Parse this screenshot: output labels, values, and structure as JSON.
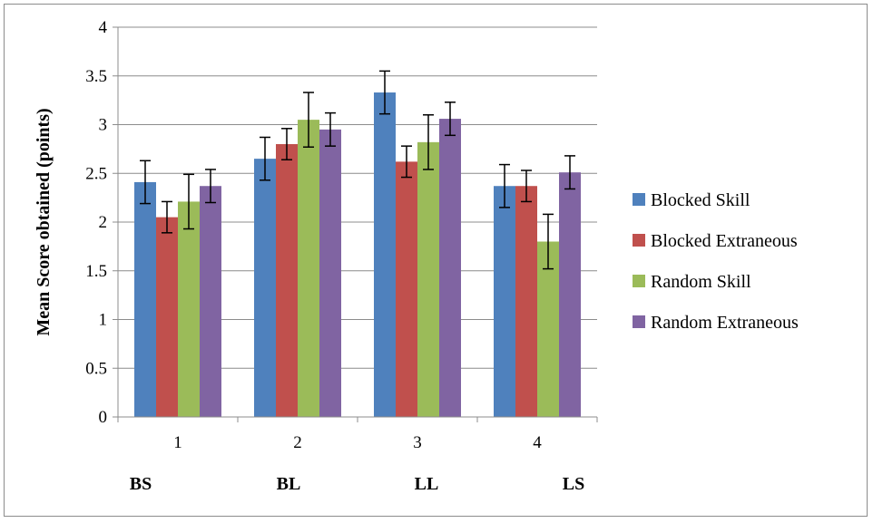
{
  "chart_data": {
    "type": "bar",
    "title": "",
    "xlabel": "",
    "ylabel": "Mean Score obtained (points)",
    "ylim": [
      0,
      4
    ],
    "yticks": [
      0,
      0.5,
      1,
      1.5,
      2,
      2.5,
      3,
      3.5,
      4
    ],
    "ytick_labels": [
      "0",
      "0.5",
      "1",
      "1.5",
      "2",
      "2.5",
      "3",
      "3.5",
      "4"
    ],
    "categories": [
      "1",
      "2",
      "3",
      "4"
    ],
    "category_sublabels": [
      "BS",
      "BL",
      "LL",
      "LS"
    ],
    "grid": "horizontal",
    "legend_position": "right",
    "series": [
      {
        "name": "Blocked Skill",
        "color": "#4f81bd",
        "values": [
          2.41,
          2.65,
          3.33,
          2.37
        ],
        "errors": [
          0.22,
          0.22,
          0.22,
          0.22
        ]
      },
      {
        "name": "Blocked Extraneous",
        "color": "#c0504d",
        "values": [
          2.05,
          2.8,
          2.62,
          2.37
        ],
        "errors": [
          0.16,
          0.16,
          0.16,
          0.16
        ]
      },
      {
        "name": "Random Skill",
        "color": "#9bbb59",
        "values": [
          2.21,
          3.05,
          2.82,
          1.8
        ],
        "errors": [
          0.28,
          0.28,
          0.28,
          0.28
        ]
      },
      {
        "name": "Random Extraneous",
        "color": "#8064a2",
        "values": [
          2.37,
          2.95,
          3.06,
          2.51
        ],
        "errors": [
          0.17,
          0.17,
          0.17,
          0.17
        ]
      }
    ]
  }
}
